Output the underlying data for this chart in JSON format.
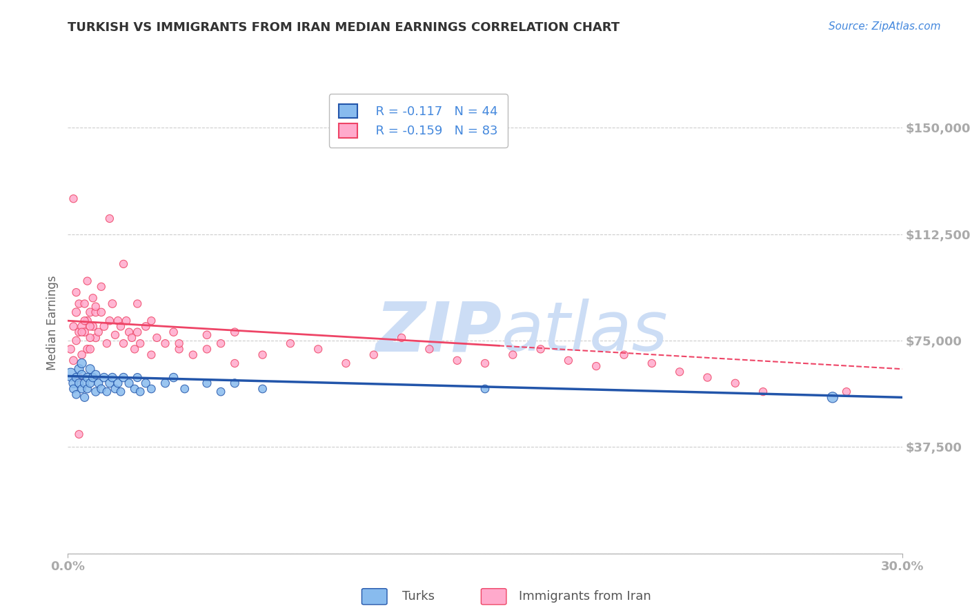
{
  "title": "TURKISH VS IMMIGRANTS FROM IRAN MEDIAN EARNINGS CORRELATION CHART",
  "source": "Source: ZipAtlas.com",
  "ylabel": "Median Earnings",
  "yticks": [
    0,
    37500,
    75000,
    112500,
    150000
  ],
  "ytick_labels": [
    "",
    "$37,500",
    "$75,000",
    "$112,500",
    "$150,000"
  ],
  "xlim": [
    0.0,
    0.3
  ],
  "ylim": [
    0,
    162500
  ],
  "legend1_r": "R = -0.117",
  "legend1_n": "N = 44",
  "legend2_r": "R = -0.159",
  "legend2_n": "N = 83",
  "label_turks": "Turks",
  "label_iran": "Immigrants from Iran",
  "color_turks": "#88bbee",
  "color_iran": "#ffaacc",
  "color_trend_turks": "#2255aa",
  "color_trend_iran": "#ee4466",
  "watermark_zip": "ZIP",
  "watermark_atlas": "atlas",
  "watermark_color": "#ccddf5",
  "title_color": "#333333",
  "axis_label_color": "#4488dd",
  "background_color": "#ffffff",
  "turks_x": [
    0.001,
    0.002,
    0.002,
    0.003,
    0.003,
    0.004,
    0.004,
    0.005,
    0.005,
    0.005,
    0.006,
    0.006,
    0.007,
    0.007,
    0.008,
    0.008,
    0.009,
    0.01,
    0.01,
    0.011,
    0.012,
    0.013,
    0.014,
    0.015,
    0.016,
    0.017,
    0.018,
    0.019,
    0.02,
    0.022,
    0.024,
    0.025,
    0.026,
    0.028,
    0.03,
    0.035,
    0.038,
    0.042,
    0.05,
    0.055,
    0.06,
    0.07,
    0.15,
    0.275
  ],
  "turks_y": [
    63000,
    60000,
    58000,
    62000,
    56000,
    65000,
    60000,
    63000,
    58000,
    67000,
    60000,
    55000,
    62000,
    58000,
    65000,
    60000,
    62000,
    57000,
    63000,
    60000,
    58000,
    62000,
    57000,
    60000,
    62000,
    58000,
    60000,
    57000,
    62000,
    60000,
    58000,
    62000,
    57000,
    60000,
    58000,
    60000,
    62000,
    58000,
    60000,
    57000,
    60000,
    58000,
    58000,
    55000
  ],
  "turks_size": [
    180,
    90,
    70,
    80,
    70,
    90,
    75,
    80,
    70,
    90,
    80,
    75,
    80,
    70,
    85,
    75,
    80,
    75,
    80,
    75,
    75,
    80,
    70,
    75,
    80,
    70,
    75,
    70,
    80,
    75,
    70,
    75,
    70,
    75,
    70,
    75,
    80,
    70,
    75,
    70,
    75,
    70,
    70,
    120
  ],
  "iran_x": [
    0.001,
    0.002,
    0.002,
    0.003,
    0.003,
    0.004,
    0.004,
    0.005,
    0.005,
    0.006,
    0.006,
    0.007,
    0.007,
    0.008,
    0.008,
    0.009,
    0.009,
    0.01,
    0.01,
    0.011,
    0.012,
    0.013,
    0.014,
    0.015,
    0.016,
    0.017,
    0.018,
    0.019,
    0.02,
    0.021,
    0.022,
    0.023,
    0.024,
    0.025,
    0.026,
    0.028,
    0.03,
    0.032,
    0.035,
    0.038,
    0.04,
    0.045,
    0.05,
    0.055,
    0.06,
    0.07,
    0.08,
    0.09,
    0.1,
    0.11,
    0.12,
    0.13,
    0.14,
    0.15,
    0.16,
    0.17,
    0.18,
    0.19,
    0.2,
    0.21,
    0.22,
    0.23,
    0.24,
    0.25,
    0.004,
    0.007,
    0.008,
    0.01,
    0.012,
    0.015,
    0.02,
    0.025,
    0.03,
    0.04,
    0.05,
    0.06,
    0.003,
    0.005,
    0.006,
    0.008,
    0.28,
    0.002,
    0.004
  ],
  "iran_y": [
    72000,
    80000,
    68000,
    85000,
    75000,
    78000,
    88000,
    80000,
    70000,
    78000,
    88000,
    72000,
    82000,
    85000,
    72000,
    80000,
    90000,
    76000,
    85000,
    78000,
    85000,
    80000,
    74000,
    82000,
    88000,
    77000,
    82000,
    80000,
    74000,
    82000,
    78000,
    76000,
    72000,
    78000,
    74000,
    80000,
    70000,
    76000,
    74000,
    78000,
    72000,
    70000,
    77000,
    74000,
    78000,
    70000,
    74000,
    72000,
    67000,
    70000,
    76000,
    72000,
    68000,
    67000,
    70000,
    72000,
    68000,
    66000,
    70000,
    67000,
    64000,
    62000,
    60000,
    57000,
    62000,
    96000,
    80000,
    87000,
    94000,
    118000,
    102000,
    88000,
    82000,
    74000,
    72000,
    67000,
    92000,
    78000,
    82000,
    76000,
    57000,
    125000,
    42000
  ],
  "iran_size": [
    70,
    65,
    70,
    75,
    68,
    70,
    65,
    72,
    68,
    70,
    65,
    70,
    68,
    72,
    68,
    70,
    65,
    68,
    70,
    65,
    68,
    70,
    65,
    68,
    70,
    65,
    68,
    65,
    65,
    68,
    65,
    65,
    65,
    68,
    65,
    68,
    65,
    65,
    65,
    68,
    65,
    65,
    68,
    65,
    68,
    65,
    65,
    65,
    65,
    65,
    65,
    65,
    65,
    65,
    65,
    65,
    65,
    65,
    65,
    65,
    65,
    65,
    65,
    65,
    65,
    65,
    65,
    65,
    65,
    65,
    65,
    65,
    65,
    65,
    65,
    65,
    65,
    65,
    65,
    65,
    65,
    65,
    65
  ],
  "trend_turks_x0": 0.0,
  "trend_turks_y0": 62500,
  "trend_turks_x1": 0.3,
  "trend_turks_y1": 55000,
  "trend_iran_x0": 0.0,
  "trend_iran_y0": 82000,
  "trend_iran_x1": 0.3,
  "trend_iran_y1": 65000,
  "trend_iran_solid_end": 0.155,
  "trend_iran_dashed_start": 0.155
}
